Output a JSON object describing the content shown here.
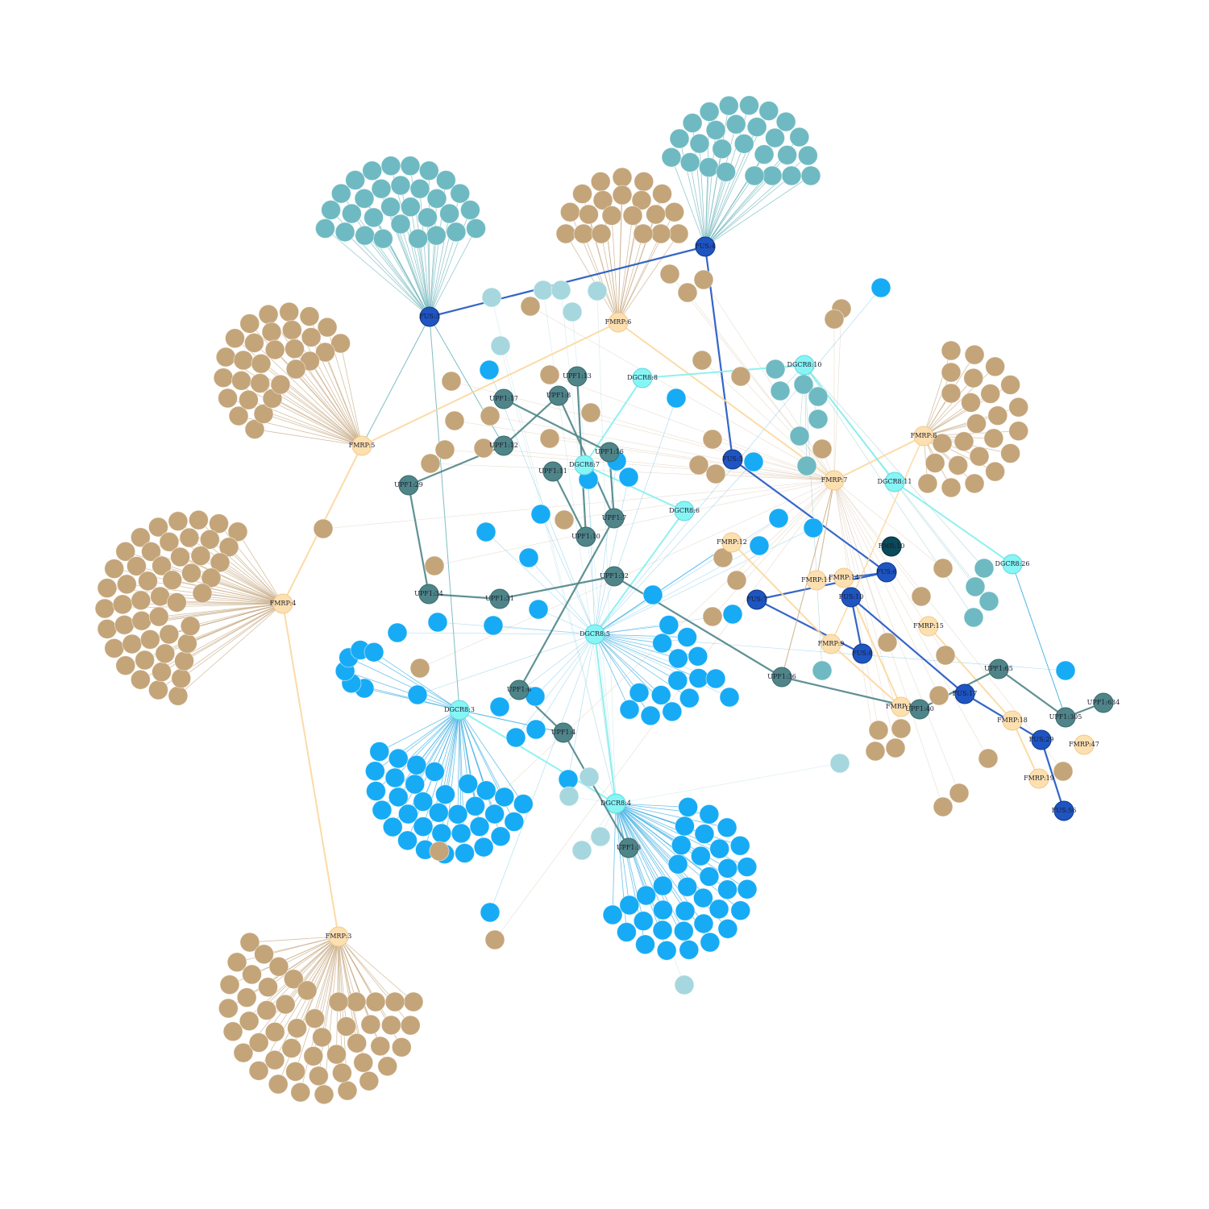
{
  "colors": {
    "fmrp_hub": "#fde0b0",
    "fmrp_leaf": "#c4a57a",
    "fmrp_edge": "#c8ab86",
    "fmrp_hub_edge": "#fcd79c",
    "fus_hub": "#1e55c2",
    "fus_edge": "#1e55c2",
    "fus_leaf": "#6fbac2",
    "fus_leaf_edge": "#72b7bd",
    "dgcr8_hub": "#88f5f5",
    "dgcr8_leaf": "#17abf5",
    "dgcr8_edge": "#3aaee3",
    "dgcr8_hub_edge": "#82f0f0",
    "upf1_hub": "#4f8588",
    "upf1_edge": "#4f8588",
    "faint_leaf": "#a7d7de",
    "dark_node": "#0a4a5a",
    "background": "#ffffff"
  },
  "hubs": [
    {
      "label": "FUS:3",
      "type": "fus"
    },
    {
      "label": "FUS:4",
      "type": "fus"
    },
    {
      "label": "FUS:5",
      "type": "fus"
    },
    {
      "label": "FUS:6",
      "type": "fus"
    },
    {
      "label": "FUS:7",
      "type": "fus"
    },
    {
      "label": "FUS:8",
      "type": "fus"
    },
    {
      "label": "FUS:10",
      "type": "fus"
    },
    {
      "label": "FUS:17",
      "type": "fus"
    },
    {
      "label": "FUS:29",
      "type": "fus"
    },
    {
      "label": "FUS:56",
      "type": "fus"
    },
    {
      "label": "FMRP:3",
      "type": "fmrp"
    },
    {
      "label": "FMRP:4",
      "type": "fmrp"
    },
    {
      "label": "FMRP:5",
      "type": "fmrp"
    },
    {
      "label": "FMRP:6",
      "type": "fmrp"
    },
    {
      "label": "FMRP:7",
      "type": "fmrp"
    },
    {
      "label": "FMRP:8",
      "type": "fmrp"
    },
    {
      "label": "FMRP:9",
      "type": "fmrp"
    },
    {
      "label": "FMRP:11",
      "type": "fmrp"
    },
    {
      "label": "FMRP:12",
      "type": "fmrp"
    },
    {
      "label": "FMRP:14",
      "type": "fmrp"
    },
    {
      "label": "FMRP:15",
      "type": "fmrp"
    },
    {
      "label": "FMRP:18",
      "type": "fmrp"
    },
    {
      "label": "FMRP:19",
      "type": "fmrp"
    },
    {
      "label": "FMRP:47",
      "type": "fmrp"
    },
    {
      "label": "FMRP:13",
      "type": "fmrp"
    },
    {
      "label": "DGCR8:3",
      "type": "dgcr8"
    },
    {
      "label": "DGCR8:4",
      "type": "dgcr8"
    },
    {
      "label": "DGCR8:5",
      "type": "dgcr8"
    },
    {
      "label": "DGCR8:6",
      "type": "dgcr8"
    },
    {
      "label": "DGCR8:7",
      "type": "dgcr8"
    },
    {
      "label": "DGCR8:8",
      "type": "dgcr8"
    },
    {
      "label": "DGCR8:10",
      "type": "dgcr8"
    },
    {
      "label": "DGCR8:11",
      "type": "dgcr8"
    },
    {
      "label": "DGCR8:26",
      "type": "dgcr8"
    },
    {
      "label": "UPF1:3",
      "type": "upf1"
    },
    {
      "label": "UPF1:4",
      "type": "upf1"
    },
    {
      "label": "UPF1:6",
      "type": "upf1"
    },
    {
      "label": "UPF1:7",
      "type": "upf1"
    },
    {
      "label": "UPF1:8",
      "type": "upf1"
    },
    {
      "label": "UPF1:10",
      "type": "upf1"
    },
    {
      "label": "UPF1:11",
      "type": "upf1"
    },
    {
      "label": "UPF1:12",
      "type": "upf1"
    },
    {
      "label": "UPF1:13",
      "type": "upf1"
    },
    {
      "label": "UPF1:16",
      "type": "upf1"
    },
    {
      "label": "UPF1:17",
      "type": "upf1"
    },
    {
      "label": "UPF1:29",
      "type": "upf1"
    },
    {
      "label": "UPF1:31",
      "type": "upf1"
    },
    {
      "label": "UPF1:32",
      "type": "upf1"
    },
    {
      "label": "UPF1:34",
      "type": "upf1"
    },
    {
      "label": "UPF1:36",
      "type": "upf1"
    },
    {
      "label": "UPF1:40",
      "type": "upf1"
    },
    {
      "label": "UPF1:65",
      "type": "upf1"
    },
    {
      "label": "UPF1:305",
      "type": "upf1"
    },
    {
      "label": "UPF1:634",
      "type": "upf1"
    },
    {
      "label": "FMR:10",
      "type": "dark"
    }
  ]
}
